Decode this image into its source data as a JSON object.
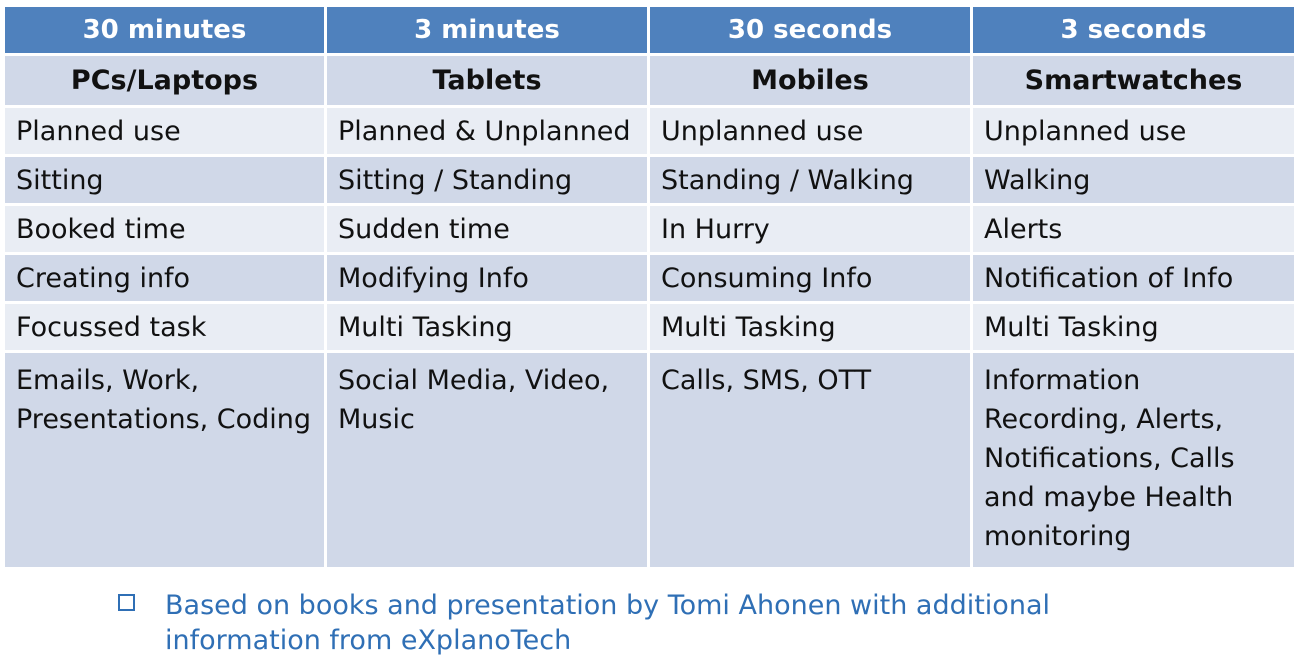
{
  "table": {
    "time_headers": [
      "30 minutes",
      "3 minutes",
      "30 seconds",
      "3 seconds"
    ],
    "device_headers": [
      "PCs/Laptops",
      "Tablets",
      "Mobiles",
      "Smartwatches"
    ],
    "rows": [
      [
        "Planned use",
        "Planned & Unplanned",
        "Unplanned use",
        "Unplanned use"
      ],
      [
        "Sitting",
        "Sitting / Standing",
        "Standing / Walking",
        "Walking"
      ],
      [
        "Booked time",
        "Sudden time",
        "In Hurry",
        "Alerts"
      ],
      [
        "Creating info",
        "Modifying Info",
        "Consuming Info",
        "Notification of Info"
      ],
      [
        "Focussed task",
        "Multi Tasking",
        "Multi Tasking",
        "Multi Tasking"
      ]
    ],
    "last_row": [
      [
        "Emails, Work,",
        "Presentations, Coding"
      ],
      [
        "Social Media, Video,",
        "Music"
      ],
      [
        "Calls, SMS, OTT"
      ],
      [
        "Information",
        "Recording,  Alerts,",
        "Notifications, Calls",
        "and maybe Health",
        "monitoring"
      ]
    ]
  },
  "footnote": {
    "icon": "checkbox-bullet-icon",
    "lines": [
      "Based on books and presentation by Tomi Ahonen with additional",
      "information from eXplanoTech"
    ]
  }
}
